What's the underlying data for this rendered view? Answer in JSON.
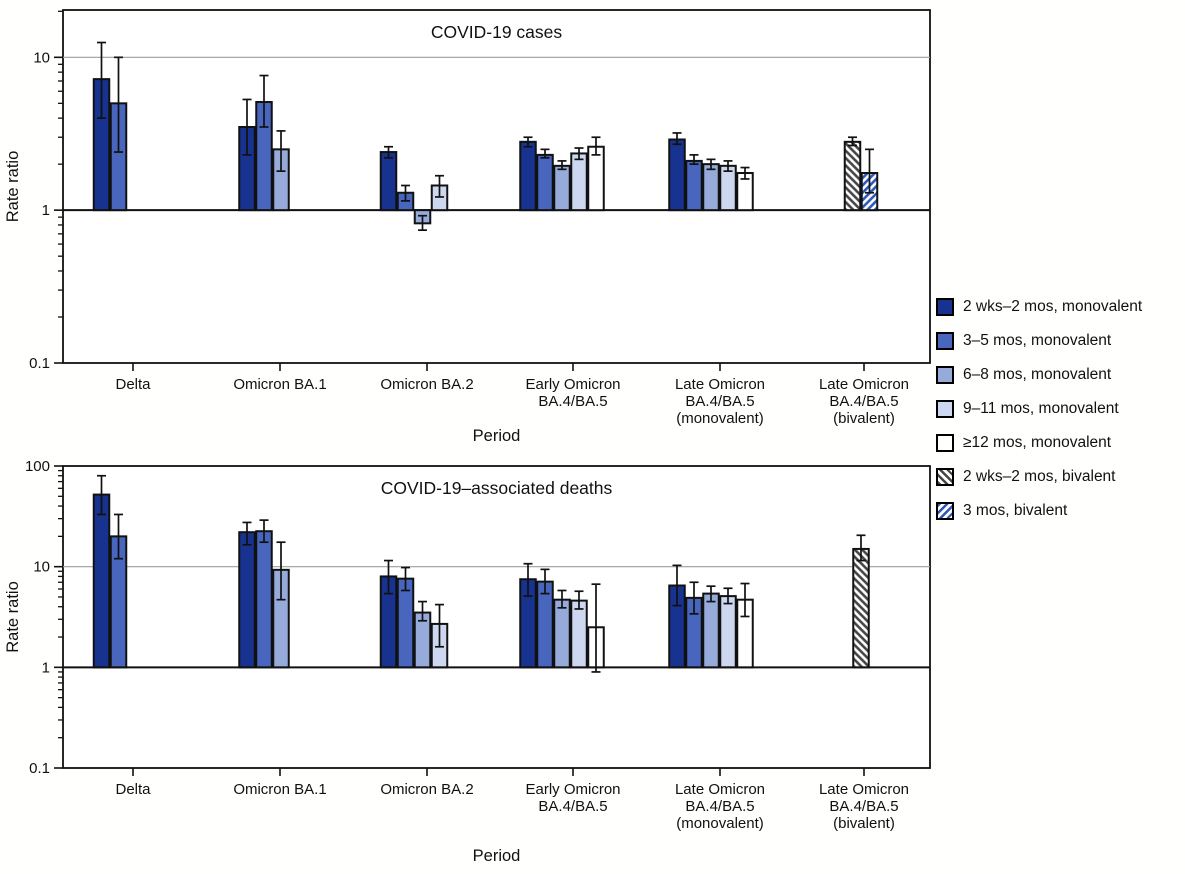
{
  "series": [
    {
      "id": "mono-2wks-2mos",
      "label": "2 wks–2 mos, monovalent",
      "fill": "#17338f",
      "pattern": "solid"
    },
    {
      "id": "mono-3-5-mos",
      "label": "3–5 mos, monovalent",
      "fill": "#4866bd",
      "pattern": "solid"
    },
    {
      "id": "mono-6-8-mos",
      "label": "6–8 mos, monovalent",
      "fill": "#97abdb",
      "pattern": "solid"
    },
    {
      "id": "mono-9-11-mos",
      "label": "9–11 mos, monovalent",
      "fill": "#cdd7ef",
      "pattern": "solid"
    },
    {
      "id": "mono-12plus-mos",
      "label": "≥12 mos, monovalent",
      "fill": "#ffffff",
      "pattern": "solid"
    },
    {
      "id": "biv-2wks-2mos",
      "label": "2 wks–2 mos, bivalent",
      "fill": "#ffffff",
      "pattern": "hatch-gray"
    },
    {
      "id": "biv-3-mos",
      "label": "3 mos, bivalent",
      "fill": "#ffffff",
      "pattern": "hatch-blue"
    }
  ],
  "chart_data": [
    {
      "type": "bar",
      "title": "COVID-19 cases",
      "xlabel": "Period",
      "ylabel": "Rate ratio",
      "yscale": "log",
      "ylim": [
        0.1,
        20.4
      ],
      "grid": "horizontal",
      "gridlines": [
        10
      ],
      "baseline": 1,
      "yticks": [
        {
          "v": 10,
          "label": "10"
        },
        {
          "v": 1,
          "label": "1"
        },
        {
          "v": 0.1,
          "label": "0.1"
        }
      ],
      "categories": [
        "Delta",
        "Omicron BA.1",
        "Omicron BA.2",
        "Early Omicron BA.4/BA.5",
        "Late Omicron BA.4/BA.5 (monovalent)",
        "Late Omicron BA.4/BA.5 (bivalent)"
      ],
      "groups": [
        {
          "label_lines": [
            "Delta"
          ],
          "bars": [
            {
              "series": 0,
              "value": 7.2,
              "lo": 4.0,
              "hi": 12.5
            },
            {
              "series": 1,
              "value": 5.0,
              "lo": 2.4,
              "hi": 10.0
            }
          ]
        },
        {
          "label_lines": [
            "Omicron BA.1"
          ],
          "bars": [
            {
              "series": 0,
              "value": 3.5,
              "lo": 2.3,
              "hi": 5.3
            },
            {
              "series": 1,
              "value": 5.1,
              "lo": 3.5,
              "hi": 7.6
            },
            {
              "series": 2,
              "value": 2.5,
              "lo": 1.8,
              "hi": 3.3
            }
          ]
        },
        {
          "label_lines": [
            "Omicron BA.2"
          ],
          "bars": [
            {
              "series": 0,
              "value": 2.4,
              "lo": 2.2,
              "hi": 2.6
            },
            {
              "series": 1,
              "value": 1.3,
              "lo": 1.15,
              "hi": 1.45
            },
            {
              "series": 2,
              "value": 0.82,
              "lo": 0.74,
              "hi": 0.92
            },
            {
              "series": 3,
              "value": 1.45,
              "lo": 1.22,
              "hi": 1.68
            }
          ]
        },
        {
          "label_lines": [
            "Early Omicron",
            "BA.4/BA.5"
          ],
          "bars": [
            {
              "series": 0,
              "value": 2.8,
              "lo": 2.6,
              "hi": 3.0
            },
            {
              "series": 1,
              "value": 2.3,
              "lo": 2.2,
              "hi": 2.5
            },
            {
              "series": 2,
              "value": 1.95,
              "lo": 1.85,
              "hi": 2.1
            },
            {
              "series": 3,
              "value": 2.35,
              "lo": 2.15,
              "hi": 2.55
            },
            {
              "series": 4,
              "value": 2.6,
              "lo": 2.3,
              "hi": 3.0
            }
          ]
        },
        {
          "label_lines": [
            "Late Omicron",
            "BA.4/BA.5",
            "(monovalent)"
          ],
          "bars": [
            {
              "series": 0,
              "value": 2.9,
              "lo": 2.7,
              "hi": 3.2
            },
            {
              "series": 1,
              "value": 2.1,
              "lo": 2.0,
              "hi": 2.3
            },
            {
              "series": 2,
              "value": 2.0,
              "lo": 1.85,
              "hi": 2.15
            },
            {
              "series": 3,
              "value": 1.95,
              "lo": 1.8,
              "hi": 2.1
            },
            {
              "series": 4,
              "value": 1.75,
              "lo": 1.6,
              "hi": 1.9
            }
          ]
        },
        {
          "label_lines": [
            "Late Omicron",
            "BA.4/BA.5",
            "(bivalent)"
          ],
          "bars": [
            {
              "series": 5,
              "value": 2.8,
              "lo": 2.65,
              "hi": 3.0
            },
            {
              "series": 6,
              "value": 1.75,
              "lo": 1.3,
              "hi": 2.5
            }
          ]
        }
      ]
    },
    {
      "type": "bar",
      "title": "COVID-19–associated deaths",
      "xlabel": "Period",
      "ylabel": "Rate ratio",
      "yscale": "log",
      "ylim": [
        0.1,
        100
      ],
      "grid": "horizontal",
      "gridlines": [
        10
      ],
      "baseline": 1,
      "yticks": [
        {
          "v": 100,
          "label": "100"
        },
        {
          "v": 10,
          "label": "10"
        },
        {
          "v": 1,
          "label": "1"
        },
        {
          "v": 0.1,
          "label": "0.1"
        }
      ],
      "categories": [
        "Delta",
        "Omicron BA.1",
        "Omicron BA.2",
        "Early Omicron BA.4/BA.5",
        "Late Omicron BA.4/BA.5 (monovalent)",
        "Late Omicron BA.4/BA.5 (bivalent)"
      ],
      "groups": [
        {
          "label_lines": [
            "Delta"
          ],
          "bars": [
            {
              "series": 0,
              "value": 52,
              "lo": 33,
              "hi": 80
            },
            {
              "series": 1,
              "value": 20,
              "lo": 12,
              "hi": 33
            }
          ]
        },
        {
          "label_lines": [
            "Omicron BA.1"
          ],
          "bars": [
            {
              "series": 0,
              "value": 22,
              "lo": 16.5,
              "hi": 27.5
            },
            {
              "series": 1,
              "value": 22.5,
              "lo": 17.5,
              "hi": 29
            },
            {
              "series": 2,
              "value": 9.3,
              "lo": 4.7,
              "hi": 17.5
            }
          ]
        },
        {
          "label_lines": [
            "Omicron BA.2"
          ],
          "bars": [
            {
              "series": 0,
              "value": 8.0,
              "lo": 5.4,
              "hi": 11.5
            },
            {
              "series": 1,
              "value": 7.6,
              "lo": 5.8,
              "hi": 9.8
            },
            {
              "series": 2,
              "value": 3.5,
              "lo": 2.9,
              "hi": 4.5
            },
            {
              "series": 3,
              "value": 2.7,
              "lo": 1.6,
              "hi": 4.2
            }
          ]
        },
        {
          "label_lines": [
            "Early Omicron",
            "BA.4/BA.5"
          ],
          "bars": [
            {
              "series": 0,
              "value": 7.5,
              "lo": 5.1,
              "hi": 10.7
            },
            {
              "series": 1,
              "value": 7.1,
              "lo": 5.4,
              "hi": 9.4
            },
            {
              "series": 2,
              "value": 4.7,
              "lo": 3.9,
              "hi": 5.8
            },
            {
              "series": 3,
              "value": 4.6,
              "lo": 3.8,
              "hi": 5.7
            },
            {
              "series": 4,
              "value": 2.5,
              "lo": 0.9,
              "hi": 6.7
            }
          ]
        },
        {
          "label_lines": [
            "Late Omicron",
            "BA.4/BA.5",
            "(monovalent)"
          ],
          "bars": [
            {
              "series": 0,
              "value": 6.5,
              "lo": 4.1,
              "hi": 10.3
            },
            {
              "series": 1,
              "value": 4.9,
              "lo": 3.4,
              "hi": 7.0
            },
            {
              "series": 2,
              "value": 5.4,
              "lo": 4.5,
              "hi": 6.4
            },
            {
              "series": 3,
              "value": 5.1,
              "lo": 4.3,
              "hi": 6.1
            },
            {
              "series": 4,
              "value": 4.7,
              "lo": 3.2,
              "hi": 6.8
            }
          ]
        },
        {
          "label_lines": [
            "Late Omicron",
            "BA.4/BA.5",
            "(bivalent)"
          ],
          "bars": [
            {
              "series": 5,
              "value": 15,
              "lo": 11.5,
              "hi": 20.5
            }
          ]
        }
      ]
    }
  ]
}
